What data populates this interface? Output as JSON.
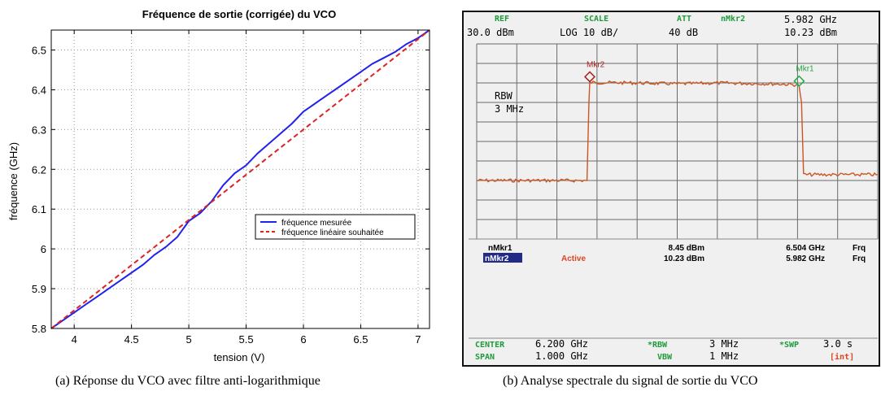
{
  "captions": {
    "left": "(a)  Réponse du VCO avec filtre anti-logarithmique",
    "right": "(b)  Analyse spectrale du signal de sortie du VCO"
  },
  "chart_data": [
    {
      "type": "line",
      "title": "Fréquence de sortie (corrigée) du VCO",
      "xlabel": "tension (V)",
      "ylabel": "fréquence (GHz)",
      "xlim": [
        3.8,
        7.1
      ],
      "ylim": [
        5.8,
        6.55
      ],
      "xticks": [
        4,
        4.5,
        5,
        5.5,
        6,
        6.5,
        7
      ],
      "xtick_labels": [
        "4",
        "4.5",
        "5",
        "5.5",
        "6",
        "6.5",
        "7"
      ],
      "yticks": [
        5.8,
        5.9,
        6,
        6.1,
        6.2,
        6.3,
        6.4,
        6.5
      ],
      "ytick_labels": [
        "5.8",
        "5.9",
        "6",
        "6.1",
        "6.2",
        "6.3",
        "6.4",
        "6.5"
      ],
      "grid": true,
      "legend_position": "center-right",
      "series": [
        {
          "name": "fréquence mesurée",
          "color": "#2222ee",
          "style": "solid",
          "x": [
            3.8,
            3.9,
            4.0,
            4.1,
            4.2,
            4.3,
            4.4,
            4.5,
            4.6,
            4.7,
            4.8,
            4.9,
            5.0,
            5.1,
            5.2,
            5.3,
            5.4,
            5.5,
            5.6,
            5.7,
            5.8,
            5.9,
            6.0,
            6.1,
            6.2,
            6.3,
            6.4,
            6.5,
            6.6,
            6.7,
            6.8,
            6.9,
            7.0,
            7.1
          ],
          "values": [
            5.8,
            5.82,
            5.84,
            5.86,
            5.88,
            5.9,
            5.92,
            5.94,
            5.96,
            5.985,
            6.005,
            6.03,
            6.07,
            6.09,
            6.12,
            6.16,
            6.19,
            6.21,
            6.24,
            6.265,
            6.29,
            6.315,
            6.345,
            6.365,
            6.385,
            6.405,
            6.425,
            6.445,
            6.465,
            6.48,
            6.495,
            6.515,
            6.53,
            6.55
          ]
        },
        {
          "name": "fréquence linéaire souhaitée",
          "color": "#dd2222",
          "style": "dashed",
          "x": [
            3.8,
            7.1
          ],
          "values": [
            5.8,
            6.55
          ]
        }
      ]
    },
    {
      "type": "line",
      "title": "",
      "header": {
        "ref_label": "REF",
        "ref_value": "30.0 dBm",
        "scale_label": "SCALE",
        "scale_value": "LOG 10 dB/",
        "att_label": "ATT",
        "att_value": "40 dB",
        "marker_label": "nMkr2",
        "marker_freq": "5.982 GHz",
        "marker_level": "10.23 dBm"
      },
      "rbw_label": "RBW",
      "rbw_value": "3 MHz",
      "marker1_label": "Mkr1",
      "marker2_label": "Mkr2",
      "marker_table": [
        {
          "name": "nMkr1",
          "state": "",
          "level": "8.45 dBm",
          "freq": "6.504 GHz",
          "unit": "Frq"
        },
        {
          "name": "nMkr2",
          "state": "Active",
          "level": "10.23 dBm",
          "freq": "5.982 GHz",
          "unit": "Frq"
        }
      ],
      "footer": {
        "center_label": "CENTER",
        "center_value": "6.200 GHz",
        "rbw_label": "*RBW",
        "rbw_value": "3 MHz",
        "swp_label": "*SWP",
        "swp_value": "3.0 s",
        "span_label": "SPAN",
        "span_value": "1.000 GHz",
        "vbw_label": "VBW",
        "vbw_value": "1 MHz",
        "int_label": "[int]"
      },
      "center_ghz": 6.2,
      "span_ghz": 1.0,
      "ref_dbm": 30,
      "db_per_div": 10,
      "grid": true,
      "series": [
        {
          "color": "#cc5522",
          "x": [
            5.7,
            5.975,
            5.98,
            5.982,
            6.1,
            6.2,
            6.3,
            6.45,
            6.5,
            6.504,
            6.51,
            6.515,
            6.7
          ],
          "values": [
            -40,
            -40,
            0,
            10.23,
            10,
            9.5,
            10,
            9.5,
            9,
            8.45,
            0,
            -37,
            -37
          ]
        }
      ]
    }
  ],
  "colors": {
    "screen_bg": "#f0f0f0",
    "screen_border": "#111111",
    "grid": "#6a6a6a",
    "trace": "#cc5522",
    "label_green": "#1f9a3a",
    "active_red": "#dd4422",
    "marker_dark_red": "#aa2222",
    "marker_green": "#22aa44"
  }
}
